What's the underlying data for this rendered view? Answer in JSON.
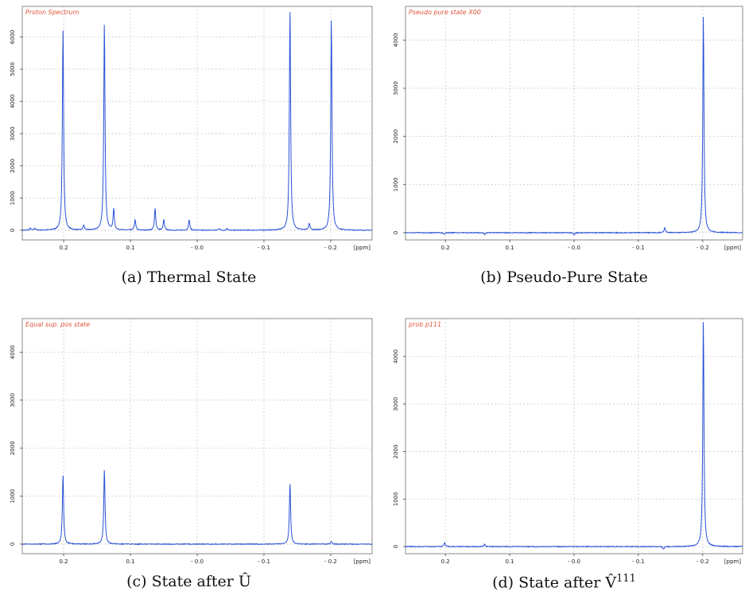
{
  "chart_data": [
    {
      "type": "line",
      "panel_label": "Proton Spectrum",
      "caption": "(a) Thermal State",
      "xlabel": "[ppm]",
      "x_reversed": true,
      "xlim": [
        0.262,
        -0.262
      ],
      "ylim": [
        -300,
        6950
      ],
      "x_ticks": [
        0.2,
        0.1,
        0.0,
        -0.1,
        -0.2
      ],
      "x_tick_labels": [
        "0.2",
        "0.1",
        "- 0.0",
        "- 0.1",
        "- 0.2"
      ],
      "y_ticks": [
        0,
        1000,
        2000,
        3000,
        4000,
        5000,
        6000
      ],
      "y_tick_labels": [
        "0",
        "1000",
        "2000",
        "3000",
        "4000",
        "5000",
        "6000"
      ],
      "grid": true,
      "series": [
        {
          "baseline": 0,
          "peaks": [
            {
              "x": 0.201,
              "y": 6300
            },
            {
              "x": 0.139,
              "y": 6500
            },
            {
              "x": -0.139,
              "y": 6900
            },
            {
              "x": -0.201,
              "y": 6600
            },
            {
              "x": 0.17,
              "y": 150
            },
            {
              "x": 0.125,
              "y": 650
            },
            {
              "x": 0.093,
              "y": 330
            },
            {
              "x": 0.063,
              "y": 680
            },
            {
              "x": 0.05,
              "y": 330
            },
            {
              "x": 0.012,
              "y": 330
            },
            {
              "x": 0.25,
              "y": 60
            },
            {
              "x": 0.243,
              "y": 60
            },
            {
              "x": -0.033,
              "y": 60
            },
            {
              "x": -0.045,
              "y": 60
            },
            {
              "x": -0.168,
              "y": 200
            }
          ]
        }
      ]
    },
    {
      "type": "line",
      "panel_label": "Pseudo pure state X00",
      "caption": "(b) Pseudo-Pure State",
      "xlabel": "[ppm]",
      "x_reversed": true,
      "xlim": [
        0.262,
        -0.262
      ],
      "ylim": [
        -150,
        4700
      ],
      "x_ticks": [
        0.2,
        0.1,
        0.0,
        -0.1,
        -0.2
      ],
      "x_tick_labels": [
        "0.2",
        "0.1",
        "- 0.0",
        "- 0.1",
        "- 0.2"
      ],
      "y_ticks": [
        0,
        1000,
        2000,
        3000,
        4000
      ],
      "y_tick_labels": [
        "0",
        "1000",
        "2000",
        "3000",
        "4000"
      ],
      "grid": true,
      "series": [
        {
          "baseline": 0,
          "peaks": [
            {
              "x": -0.201,
              "y": 4550
            },
            {
              "x": -0.141,
              "y": 110
            },
            {
              "x": 0.202,
              "y": -40
            },
            {
              "x": 0.139,
              "y": -40
            },
            {
              "x": 0.0,
              "y": -40
            }
          ]
        }
      ]
    },
    {
      "type": "line",
      "panel_label": "Equal sup. pos state",
      "caption": "(c) State after Û",
      "xlabel": "[ppm]",
      "x_reversed": true,
      "xlim": [
        0.262,
        -0.262
      ],
      "ylim": [
        -200,
        4700
      ],
      "x_ticks": [
        0.2,
        0.1,
        0.0,
        -0.1,
        -0.2
      ],
      "x_tick_labels": [
        "0.2",
        "0.1",
        "- 0.0",
        "- 0.1",
        "- 0.2"
      ],
      "y_ticks": [
        0,
        1000,
        2000,
        3000,
        4000
      ],
      "y_tick_labels": [
        "0",
        "1000",
        "2000",
        "3000",
        "4000"
      ],
      "grid": true,
      "series": [
        {
          "baseline": 0,
          "peaks": [
            {
              "x": 0.201,
              "y": 1450
            },
            {
              "x": 0.139,
              "y": 1570
            },
            {
              "x": -0.139,
              "y": 1270
            },
            {
              "x": -0.201,
              "y": 60
            }
          ]
        }
      ]
    },
    {
      "type": "line",
      "panel_label": "prob p111",
      "caption": "(d) State after V̂",
      "caption_sup": "111",
      "xlabel": "[ppm]",
      "x_reversed": true,
      "xlim": [
        0.262,
        -0.262
      ],
      "ylim": [
        -150,
        4800
      ],
      "x_ticks": [
        0.2,
        0.1,
        0.0,
        -0.1,
        -0.2
      ],
      "x_tick_labels": [
        "0.2",
        "0.1",
        "- 0.0",
        "- 0.1",
        "- 0.2"
      ],
      "y_ticks": [
        0,
        1000,
        2000,
        3000,
        4000
      ],
      "y_tick_labels": [
        "0",
        "1000",
        "2000",
        "3000",
        "4000"
      ],
      "grid": true,
      "series": [
        {
          "baseline": 0,
          "peaks": [
            {
              "x": -0.201,
              "y": 4800
            },
            {
              "x": 0.201,
              "y": 90
            },
            {
              "x": 0.139,
              "y": 50
            },
            {
              "x": -0.139,
              "y": -60
            }
          ]
        }
      ]
    }
  ],
  "colors": {
    "trace": "#2a52d8",
    "label": "#e0553c",
    "grid": "#b8b8b8",
    "frame": "#888888"
  }
}
